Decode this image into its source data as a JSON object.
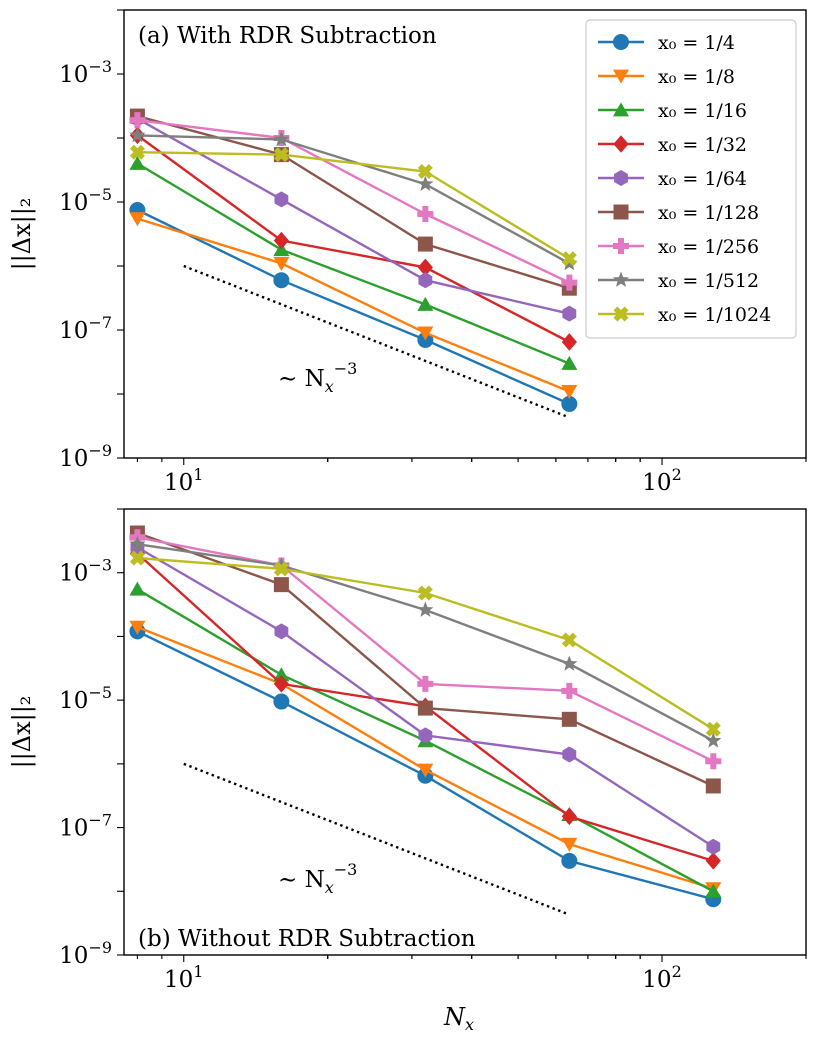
{
  "chart_data": [
    {
      "type": "line",
      "panel_label": "(a) With RDR Subtraction",
      "ylabel": "||Δx||₂",
      "xlabel": "",
      "xscale": "log",
      "yscale": "log",
      "xlim": [
        7.5,
        200
      ],
      "ylim": [
        1e-09,
        0.01
      ],
      "x_ticks": [
        {
          "base": "10",
          "exp": "1"
        },
        {
          "base": "10",
          "exp": "2"
        }
      ],
      "y_ticks": [
        {
          "base": "10",
          "exp": "−3"
        },
        {
          "base": "10",
          "exp": "−5"
        },
        {
          "base": "10",
          "exp": "−7"
        },
        {
          "base": "10",
          "exp": "−9"
        }
      ],
      "legend_position": "top-right",
      "reference_line": {
        "label_base": "∼ N",
        "label_sub": "x",
        "label_sup": "−3",
        "x": [
          10,
          63
        ],
        "y": [
          1e-06,
          4.5e-09
        ]
      },
      "series": [
        {
          "name": "x₀ = 1/4",
          "color": "#1f77b4",
          "marker": "circle",
          "x": [
            8,
            16,
            32,
            64
          ],
          "y": [
            7.5e-06,
            6e-07,
            7e-08,
            7e-09
          ]
        },
        {
          "name": "x₀ = 1/8",
          "color": "#ff7f0e",
          "marker": "triangle-down",
          "x": [
            8,
            16,
            32,
            64
          ],
          "y": [
            5.5e-06,
            1.1e-06,
            9e-08,
            1.1e-08
          ]
        },
        {
          "name": "x₀ = 1/16",
          "color": "#2ca02c",
          "marker": "triangle-up",
          "x": [
            8,
            16,
            32,
            64
          ],
          "y": [
            4e-05,
            1.8e-06,
            2.5e-07,
            3e-08
          ]
        },
        {
          "name": "x₀ = 1/32",
          "color": "#d62728",
          "marker": "diamond",
          "x": [
            8,
            16,
            32,
            64
          ],
          "y": [
            0.00011,
            2.5e-06,
            9.5e-07,
            6.5e-08
          ]
        },
        {
          "name": "x₀ = 1/64",
          "color": "#9467bd",
          "marker": "hexagon",
          "x": [
            8,
            16,
            32,
            64
          ],
          "y": [
            0.0002,
            1.1e-05,
            6e-07,
            1.8e-07
          ]
        },
        {
          "name": "x₀ = 1/128",
          "color": "#8c564b",
          "marker": "square",
          "x": [
            8,
            16,
            32,
            64
          ],
          "y": [
            0.00022,
            5.5e-05,
            2.2e-06,
            4.5e-07
          ]
        },
        {
          "name": "x₀ = 1/256",
          "color": "#e377c2",
          "marker": "plus",
          "x": [
            8,
            16,
            32,
            64
          ],
          "y": [
            0.00019,
            0.0001,
            6.5e-06,
            5.5e-07
          ]
        },
        {
          "name": "x₀ = 1/512",
          "color": "#7f7f7f",
          "marker": "star",
          "x": [
            8,
            16,
            32,
            64
          ],
          "y": [
            0.00011,
            9.5e-05,
            1.9e-05,
            1.1e-06
          ]
        },
        {
          "name": "x₀ = 1/1024",
          "color": "#bcbd22",
          "marker": "x",
          "x": [
            8,
            16,
            32,
            64
          ],
          "y": [
            6e-05,
            5.5e-05,
            3e-05,
            1.3e-06
          ]
        }
      ]
    },
    {
      "type": "line",
      "panel_label": "(b) Without RDR Subtraction",
      "ylabel": "||Δx||₂",
      "xlabel": "N",
      "xlabel_sub": "x",
      "xscale": "log",
      "yscale": "log",
      "xlim": [
        7.5,
        200
      ],
      "ylim": [
        1e-09,
        0.01
      ],
      "x_ticks": [
        {
          "base": "10",
          "exp": "1"
        },
        {
          "base": "10",
          "exp": "2"
        }
      ],
      "y_ticks": [
        {
          "base": "10",
          "exp": "−3"
        },
        {
          "base": "10",
          "exp": "−5"
        },
        {
          "base": "10",
          "exp": "−7"
        },
        {
          "base": "10",
          "exp": "−9"
        }
      ],
      "reference_line": {
        "label_base": "∼ N",
        "label_sub": "x",
        "label_sup": "−3",
        "x": [
          10,
          63
        ],
        "y": [
          1e-06,
          4.5e-09
        ]
      },
      "series": [
        {
          "name": "x₀ = 1/4",
          "color": "#1f77b4",
          "marker": "circle",
          "x": [
            8,
            16,
            32,
            64,
            128
          ],
          "y": [
            0.00012,
            9.5e-06,
            6.5e-07,
            3e-08,
            7.5e-09
          ]
        },
        {
          "name": "x₀ = 1/8",
          "color": "#ff7f0e",
          "marker": "triangle-down",
          "x": [
            8,
            16,
            32,
            64,
            128
          ],
          "y": [
            0.00014,
            1.8e-05,
            8e-07,
            5.5e-08,
            1.1e-08
          ]
        },
        {
          "name": "x₀ = 1/16",
          "color": "#2ca02c",
          "marker": "triangle-up",
          "x": [
            8,
            16,
            32,
            64,
            128
          ],
          "y": [
            0.00055,
            2.5e-05,
            2.3e-06,
            1.6e-07,
            1e-08
          ]
        },
        {
          "name": "x₀ = 1/32",
          "color": "#d62728",
          "marker": "diamond",
          "x": [
            8,
            16,
            32,
            64,
            128
          ],
          "y": [
            0.002,
            1.8e-05,
            8e-06,
            1.5e-07,
            3e-08
          ]
        },
        {
          "name": "x₀ = 1/64",
          "color": "#9467bd",
          "marker": "hexagon",
          "x": [
            8,
            16,
            32,
            64,
            128
          ],
          "y": [
            0.0025,
            0.00012,
            2.8e-06,
            1.4e-06,
            5e-08
          ]
        },
        {
          "name": "x₀ = 1/128",
          "color": "#8c564b",
          "marker": "square",
          "x": [
            8,
            16,
            32,
            64,
            128
          ],
          "y": [
            0.0042,
            0.00065,
            7.5e-06,
            5e-06,
            4.5e-07
          ]
        },
        {
          "name": "x₀ = 1/256",
          "color": "#e377c2",
          "marker": "plus",
          "x": [
            8,
            16,
            32,
            64,
            128
          ],
          "y": [
            0.0036,
            0.0013,
            1.8e-05,
            1.4e-05,
            1.1e-06
          ]
        },
        {
          "name": "x₀ = 1/512",
          "color": "#7f7f7f",
          "marker": "star",
          "x": [
            8,
            16,
            32,
            64,
            128
          ],
          "y": [
            0.0028,
            0.0013,
            0.00026,
            3.7e-05,
            2.3e-06
          ]
        },
        {
          "name": "x₀ = 1/1024",
          "color": "#bcbd22",
          "marker": "x",
          "x": [
            8,
            16,
            32,
            64,
            128
          ],
          "y": [
            0.0017,
            0.00115,
            0.00048,
            8.8e-05,
            3.5e-06
          ]
        }
      ]
    }
  ]
}
